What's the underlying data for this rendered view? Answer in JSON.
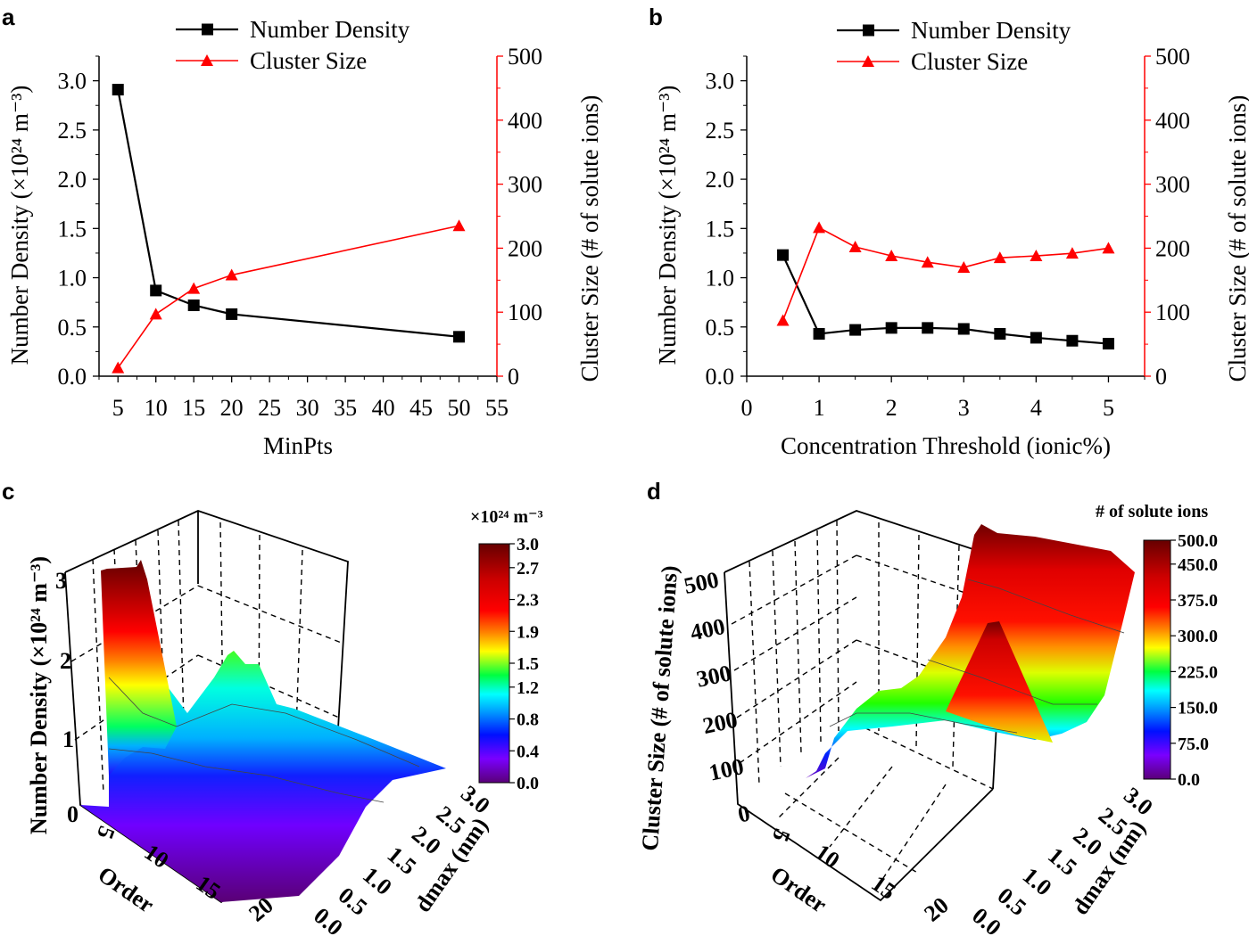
{
  "panels": {
    "a": "a",
    "b": "b",
    "c": "c",
    "d": "d"
  },
  "legend": {
    "series1": "Number Density",
    "series2": "Cluster Size"
  },
  "colors": {
    "number_density": "#000000",
    "cluster_size": "#ff0000"
  },
  "chart_data": [
    {
      "panel": "a",
      "type": "line",
      "xlabel": "MinPts",
      "ylabel": "Number Density (×10²⁴ m⁻³)",
      "y2label": "Cluster Size (# of solute ions)",
      "xlim": [
        2.5,
        55
      ],
      "ylim": [
        0,
        3.25
      ],
      "y2lim": [
        0,
        500
      ],
      "xticks": [
        5,
        10,
        15,
        20,
        25,
        30,
        35,
        40,
        45,
        50,
        55
      ],
      "yticks": [
        "0.0",
        "0.5",
        "1.0",
        "1.5",
        "2.0",
        "2.5",
        "3.0"
      ],
      "y2ticks": [
        "0",
        "100",
        "200",
        "300",
        "400",
        "500"
      ],
      "legend_position": "top",
      "grid": false,
      "x": [
        5,
        10,
        15,
        20,
        50
      ],
      "series": [
        {
          "name": "Number Density",
          "axis": "left",
          "marker": "square",
          "color": "#000000",
          "values": [
            2.91,
            0.87,
            0.72,
            0.63,
            0.4
          ]
        },
        {
          "name": "Cluster Size",
          "axis": "right",
          "marker": "triangle",
          "color": "#ff0000",
          "values": [
            13,
            97,
            137,
            158,
            235
          ]
        }
      ]
    },
    {
      "panel": "b",
      "type": "line",
      "xlabel": "Concentration Threshold (ionic%)",
      "ylabel": "Number Density (×10²⁴ m⁻³)",
      "y2label": "Cluster Size (# of solute ions)",
      "xlim": [
        0,
        5.5
      ],
      "ylim": [
        0,
        3.25
      ],
      "y2lim": [
        0,
        500
      ],
      "xticks": [
        0,
        1,
        2,
        3,
        4,
        5
      ],
      "yticks": [
        "0.0",
        "0.5",
        "1.0",
        "1.5",
        "2.0",
        "2.5",
        "3.0"
      ],
      "y2ticks": [
        "0",
        "100",
        "200",
        "300",
        "400",
        "500"
      ],
      "legend_position": "top",
      "grid": false,
      "x": [
        0.5,
        1,
        1.5,
        2,
        2.5,
        3,
        3.5,
        4,
        4.5,
        5
      ],
      "series": [
        {
          "name": "Number Density",
          "axis": "left",
          "marker": "square",
          "color": "#000000",
          "values": [
            1.23,
            0.43,
            0.47,
            0.49,
            0.49,
            0.48,
            0.43,
            0.39,
            0.36,
            0.33
          ]
        },
        {
          "name": "Cluster Size",
          "axis": "right",
          "marker": "triangle",
          "color": "#ff0000",
          "values": [
            87,
            232,
            202,
            188,
            178,
            170,
            185,
            188,
            192,
            200
          ]
        }
      ]
    },
    {
      "panel": "c",
      "type": "surface",
      "xlabel": "Order",
      "ylabel": "dmax (nm)",
      "zlabel": "Number Density (×10²⁴ m⁻³)",
      "xticks": [
        "5",
        "10",
        "15",
        "20"
      ],
      "yticks": [
        "0.0",
        "0.5",
        "1.0",
        "1.5",
        "2.0",
        "2.5",
        "3.0"
      ],
      "zticks": [
        "0",
        "1",
        "2",
        "3"
      ],
      "colorbar_title": "×10²⁴ m⁻³",
      "colorbar_ticks": [
        "3.0",
        "2.7",
        "2.3",
        "1.9",
        "1.5",
        "1.2",
        "0.8",
        "0.4",
        "0.0"
      ],
      "colormap": "rainbow",
      "zlim": [
        0,
        3
      ]
    },
    {
      "panel": "d",
      "type": "surface",
      "xlabel": "Order",
      "ylabel": "dmax (nm)",
      "zlabel": "Cluster Size (# of solute ions)",
      "xticks": [
        "5",
        "10",
        "15",
        "20"
      ],
      "yticks": [
        "0.0",
        "0.5",
        "1.0",
        "1.5",
        "2.0",
        "2.5",
        "3.0"
      ],
      "zticks": [
        "0",
        "100",
        "200",
        "300",
        "400",
        "500"
      ],
      "colorbar_title": "# of solute ions",
      "colorbar_ticks": [
        "500.0",
        "450.0",
        "375.0",
        "300.0",
        "225.0",
        "150.0",
        "75.0",
        "0.0"
      ],
      "colormap": "rainbow",
      "zlim": [
        0,
        500
      ]
    }
  ]
}
